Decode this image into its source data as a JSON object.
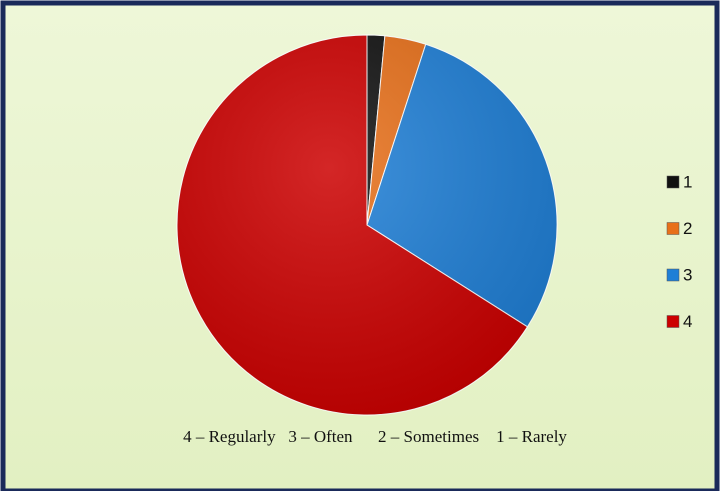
{
  "chart_data": {
    "type": "pie",
    "categories": [
      "1",
      "2",
      "3",
      "4"
    ],
    "values": [
      1.5,
      3.5,
      29,
      66
    ],
    "colors": [
      "#111111",
      "#e8701a",
      "#1f7fd6",
      "#cc0000"
    ],
    "legend": "right",
    "annotation": "4 – Regularly   3 – Often      2 – Sometimes    1 – Rarely"
  }
}
